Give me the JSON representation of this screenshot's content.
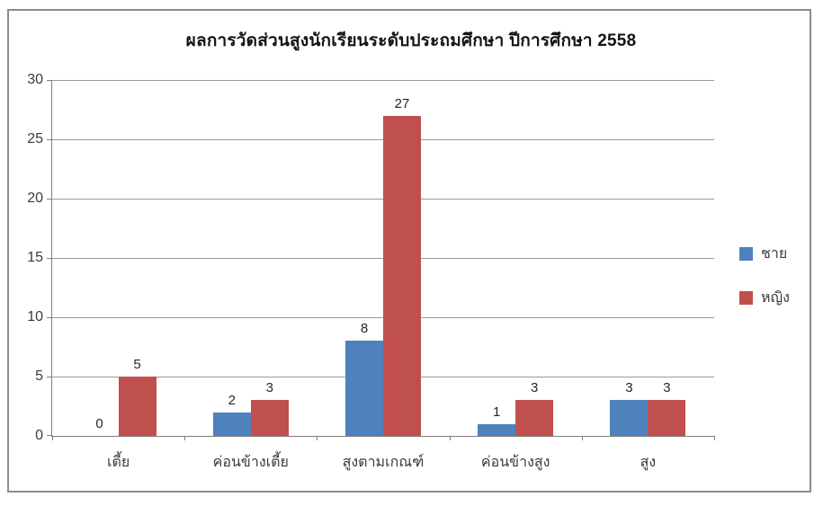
{
  "chart_data": {
    "type": "bar",
    "title": "ผลการวัดส่วนสูงนักเรียนระดับประถมศึกษา ปีการศึกษา 2558",
    "categories": [
      "เตี้ย",
      "ค่อนข้างเตี้ย",
      "สูงตามเกณฑ์",
      "ค่อนข้างสูง",
      "สูง"
    ],
    "series": [
      {
        "name": "ชาย",
        "color": "#4F81BD",
        "values": [
          0,
          2,
          8,
          1,
          3
        ]
      },
      {
        "name": "หญิง",
        "color": "#C0504D",
        "values": [
          5,
          3,
          27,
          3,
          3
        ]
      }
    ],
    "xlabel": "",
    "ylabel": "",
    "ylim": [
      0,
      30
    ],
    "yticks": [
      0,
      5,
      10,
      15,
      20,
      25,
      30
    ],
    "grid": true,
    "data_labels": true,
    "legend_position": "right",
    "colors": {
      "frame_border": "#8C8C8C",
      "gridline": "#9A9A9A",
      "axis": "#7F7F7F",
      "text": "#3A3A3A"
    }
  }
}
